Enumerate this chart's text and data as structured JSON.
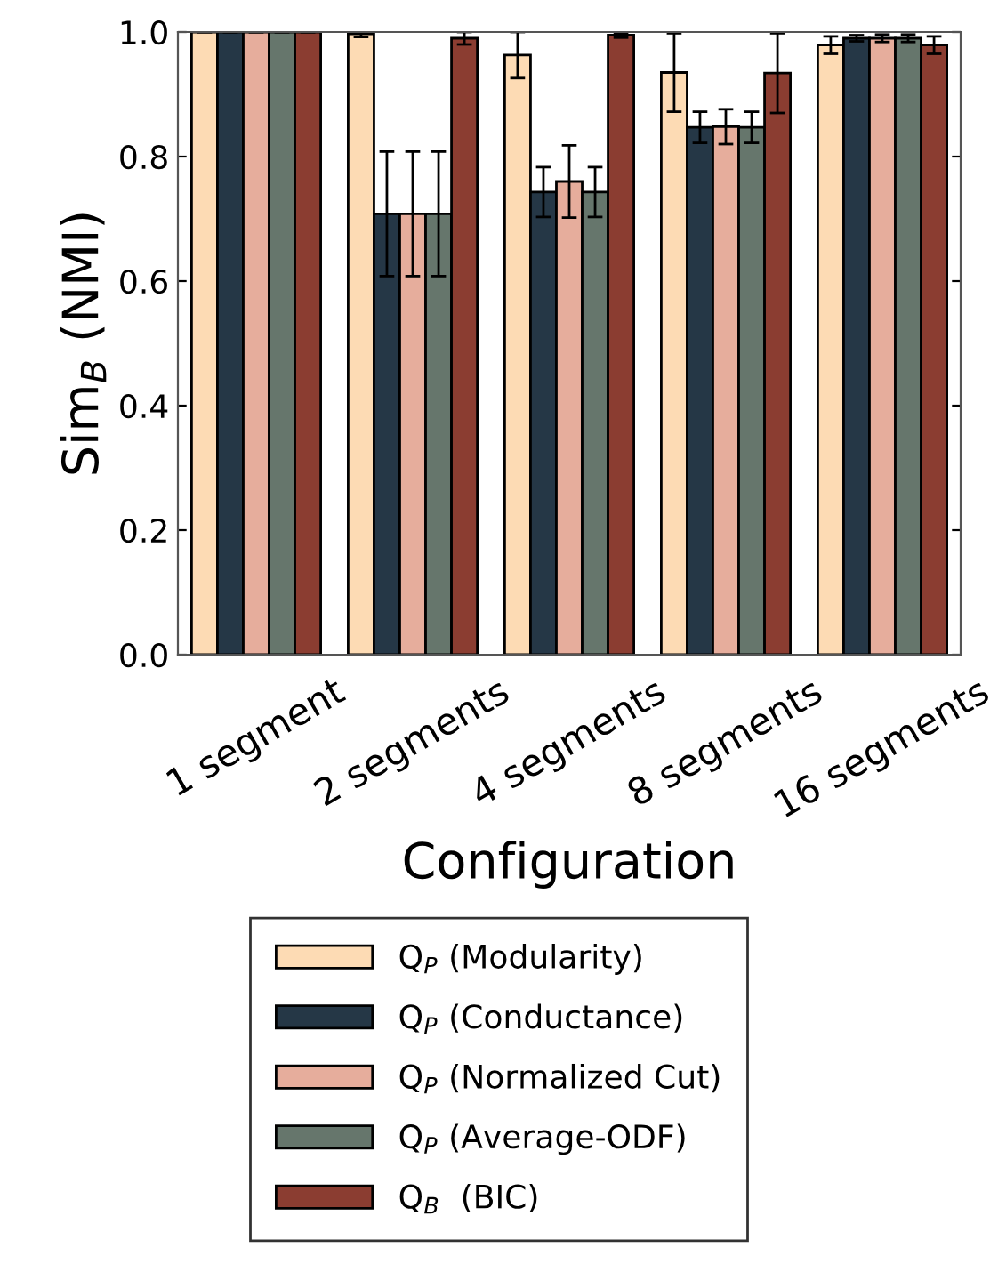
{
  "chart_data": {
    "type": "bar",
    "xlabel": "Configuration",
    "ylabel": "Sim$_{B}$ (NMI)",
    "categories": [
      "1 segment",
      "2 segments",
      "4 segments",
      "8 segments",
      "16 segments"
    ],
    "series": [
      {
        "name": "Q$_{P}$ (Modularity)",
        "color": "#fddbb4",
        "values": [
          1.0,
          0.997,
          0.963,
          0.935,
          0.979
        ],
        "errors": [
          0,
          0.005,
          0.037,
          0.063,
          0.014
        ]
      },
      {
        "name": "Q$_{P}$ (Conductance)",
        "color": "#253746",
        "values": [
          1.0,
          0.708,
          0.743,
          0.847,
          0.99
        ],
        "errors": [
          0,
          0.1,
          0.04,
          0.025,
          0.005
        ]
      },
      {
        "name": "Q$_{P}$ (Normalized Cut)",
        "color": "#e6ad9c",
        "values": [
          1.0,
          0.708,
          0.76,
          0.848,
          0.99
        ],
        "errors": [
          0,
          0.1,
          0.058,
          0.028,
          0.006
        ]
      },
      {
        "name": "Q$_{P}$ (Average-ODF)",
        "color": "#66766c",
        "values": [
          1.0,
          0.708,
          0.743,
          0.847,
          0.99
        ],
        "errors": [
          0,
          0.1,
          0.04,
          0.025,
          0.006
        ]
      },
      {
        "name": "Q$_{B}$  (BIC)",
        "color": "#8b3d31",
        "values": [
          1.0,
          0.99,
          0.995,
          0.934,
          0.979
        ],
        "errors": [
          0,
          0.01,
          0.004,
          0.064,
          0.014
        ]
      }
    ],
    "ylim": [
      0.0,
      1.0
    ],
    "yticks": [
      {
        "value": 0,
        "label": "0.0"
      },
      {
        "value": 0.2,
        "label": "0.2"
      },
      {
        "value": 0.4,
        "label": "0.4"
      },
      {
        "value": 0.6,
        "label": "0.6"
      },
      {
        "value": 0.8,
        "label": "0.8"
      },
      {
        "value": 1.0,
        "label": "1.0"
      }
    ],
    "grid": false,
    "legend": "bottom"
  }
}
